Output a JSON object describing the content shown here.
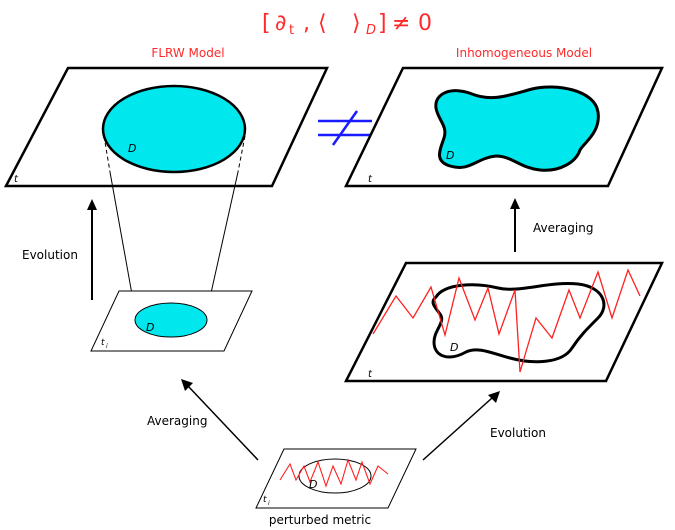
{
  "formula": {
    "bracket_open": "[",
    "partial": "∂",
    "t_sub": "t",
    "comma": ",",
    "angle_open": "⟨",
    "angle_close": "⟩",
    "d_sub": "D",
    "bracket_close": "]",
    "neq": "≠",
    "zero": "0"
  },
  "labels": {
    "flrw_title": "FLRW Model",
    "inhom_title": "Inhomogeneous Model",
    "evolution_left": "Evolution",
    "averaging_right": "Averaging",
    "averaging_bottom_left": "Averaging",
    "evolution_bottom_right": "Evolution",
    "perturbed_metric": "perturbed metric",
    "not_equal_symbol": "≠"
  },
  "planes": {
    "flrw_top": {
      "time": "t",
      "region": "D"
    },
    "flrw_bottom": {
      "time": "t",
      "time_sub": "i",
      "region": "D"
    },
    "inhom_top": {
      "time": "t",
      "region": "D"
    },
    "inhom_middle": {
      "time": "t",
      "region": "D"
    },
    "perturbed": {
      "time": "t",
      "time_sub": "i",
      "region": "D"
    }
  },
  "colors": {
    "title_red": "#ff2a2a",
    "region_cyan": "#00e8ee",
    "neq_blue": "#1a1aff",
    "wiggle_red": "#ff2020",
    "ink": "#000000"
  }
}
